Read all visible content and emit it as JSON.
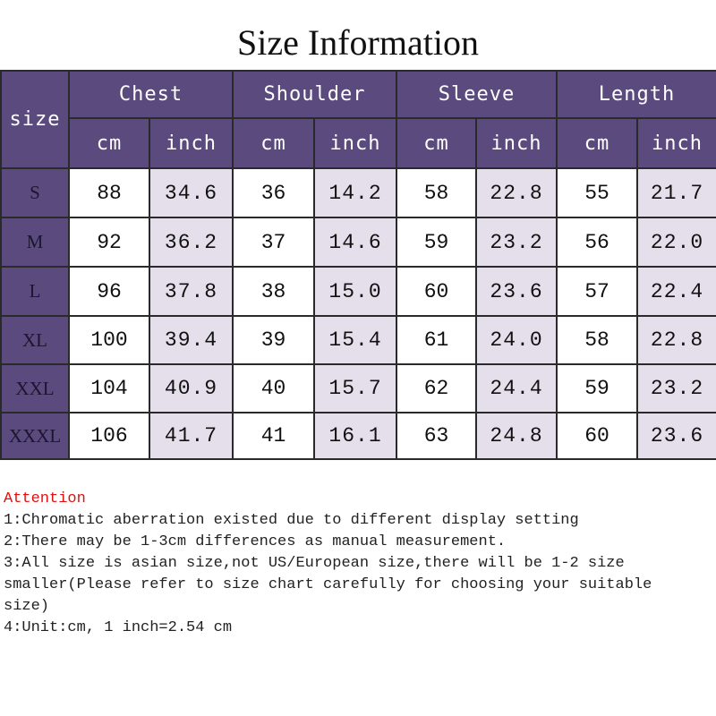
{
  "title": "Size Information",
  "table": {
    "corner": "size",
    "groups": [
      "Chest",
      "Shoulder",
      "Sleeve",
      "Length"
    ],
    "units": [
      "cm",
      "inch"
    ],
    "rows": [
      [
        "S",
        "88",
        "34.6",
        "36",
        "14.2",
        "58",
        "22.8",
        "55",
        "21.7"
      ],
      [
        "M",
        "92",
        "36.2",
        "37",
        "14.6",
        "59",
        "23.2",
        "56",
        "22.0"
      ],
      [
        "L",
        "96",
        "37.8",
        "38",
        "15.0",
        "60",
        "23.6",
        "57",
        "22.4"
      ],
      [
        "XL",
        "100",
        "39.4",
        "39",
        "15.4",
        "61",
        "24.0",
        "58",
        "22.8"
      ],
      [
        "XXL",
        "104",
        "40.9",
        "40",
        "15.7",
        "62",
        "24.4",
        "59",
        "23.2"
      ],
      [
        "XXXL",
        "106",
        "41.7",
        "41",
        "16.1",
        "63",
        "24.8",
        "60",
        "23.6"
      ]
    ]
  },
  "notes": {
    "heading": "Attention",
    "lines": [
      "1:Chromatic aberration existed due to different display setting",
      "2:There may be 1-3cm differences as manual measurement.",
      "3:All size is asian size,not US/European size,there will be 1-2 size smaller(Please refer to size chart carefully for choosing your suitable size)",
      "4:Unit:cm, 1 inch=2.54 cm"
    ]
  }
}
